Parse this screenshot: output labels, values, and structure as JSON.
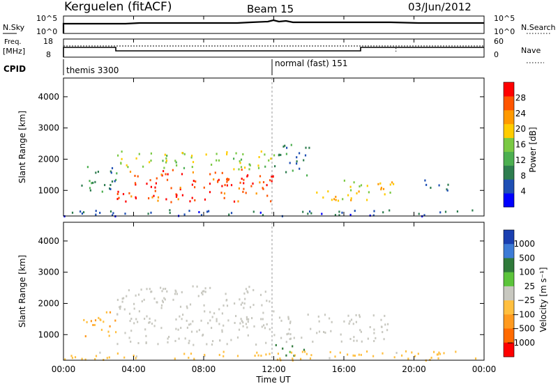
{
  "header": {
    "site": "Kerguelen (fitACF)",
    "beam": "Beam 15",
    "date": "03/Jun/2012"
  },
  "nsky_panel": {
    "left_label": "N.Sky",
    "right_label": "N.Search",
    "left_ticks": [
      "10^5",
      "10^0"
    ],
    "right_ticks": [
      "10^5",
      "10^0"
    ]
  },
  "freq_panel": {
    "left_label_1": "Freq.",
    "left_label_2": "[MHz]",
    "right_label": "Nave",
    "left_ticks": [
      "18",
      "8"
    ],
    "right_ticks": [
      "60",
      "0"
    ]
  },
  "cpid": {
    "label": "CPID",
    "modes": [
      {
        "name": "themis",
        "id": "3300"
      },
      {
        "name": "normal (fast)",
        "id": "151"
      }
    ]
  },
  "time_axis": {
    "label": "Time UT",
    "ticks": [
      "00:00",
      "04:00",
      "08:00",
      "12:00",
      "16:00",
      "20:00",
      "00:00"
    ]
  },
  "power_panel": {
    "ylabel": "Slant Range [km]",
    "yticks": [
      "1000",
      "2000",
      "3000",
      "4000"
    ],
    "colorbar_label": "Power [dB]",
    "colorbar_ticks": [
      "4",
      "8",
      "12",
      "16",
      "20",
      "24",
      "28"
    ]
  },
  "velocity_panel": {
    "ylabel": "Slant Range [km]",
    "yticks": [
      "1000",
      "2000",
      "3000",
      "4000"
    ],
    "colorbar_label": "Velocity [m s⁻¹]",
    "colorbar_ticks": [
      "1000",
      "500",
      "100",
      "25",
      "−25",
      "−100",
      "−500",
      "−1000"
    ]
  },
  "colors": {
    "power_scale": [
      "#0000ff",
      "#1f4fb4",
      "#2e7d4f",
      "#4caf50",
      "#7ac943",
      "#ffcc00",
      "#ff9900",
      "#ff5500",
      "#ff0000"
    ],
    "velocity_scale": [
      "#1a3fb0",
      "#3d7bd6",
      "#2f7a3a",
      "#5cc43b",
      "#c8c8c0",
      "#ffbf3f",
      "#ff9a1f",
      "#ff6a00",
      "#ff0000"
    ],
    "ground_scatter": "#c8c8c0"
  },
  "chart_data": [
    {
      "type": "line",
      "title": "N.Sky / N.Search",
      "x": [
        0,
        12,
        24
      ],
      "xlim": [
        0,
        24
      ],
      "series": [
        {
          "name": "N.Sky",
          "values": [
            1000,
            1600,
            1000
          ]
        }
      ],
      "yscale": "log",
      "ylim": [
        1,
        100000
      ]
    },
    {
      "type": "line",
      "title": "Freq / Nave",
      "x": [
        0,
        3,
        3,
        17,
        17,
        24
      ],
      "xlim": [
        0,
        24
      ],
      "series": [
        {
          "name": "Freq. [MHz]",
          "values": [
            12.5,
            12.5,
            9.6,
            9.6,
            12.5,
            12.5
          ]
        }
      ],
      "ylim": [
        8,
        18
      ]
    },
    {
      "type": "heatmap",
      "title": "Power [dB]",
      "xlim": [
        0,
        24
      ],
      "ylim": [
        180,
        4600
      ],
      "zlim": [
        0,
        30
      ],
      "regions": [
        {
          "t0": 1.0,
          "t1": 3.0,
          "r0": 900,
          "r1": 1900,
          "power": 8
        },
        {
          "t0": 3.0,
          "t1": 12.0,
          "r0": 650,
          "r1": 1700,
          "power": 27
        },
        {
          "t0": 3.0,
          "t1": 12.0,
          "r0": 1700,
          "r1": 2300,
          "power": 16
        },
        {
          "t0": 12.0,
          "t1": 14.0,
          "r0": 1500,
          "r1": 2500,
          "power": 6
        },
        {
          "t0": 14.3,
          "t1": 15.6,
          "r0": 700,
          "r1": 1200,
          "power": 20
        },
        {
          "t0": 15.6,
          "t1": 19.0,
          "r0": 700,
          "r1": 1400,
          "power": 18
        },
        {
          "t0": 20.5,
          "t1": 22.0,
          "r0": 1000,
          "r1": 1400,
          "power": 6
        },
        {
          "t0": 0.0,
          "t1": 24.0,
          "r0": 200,
          "r1": 400,
          "power": 5
        }
      ]
    },
    {
      "type": "heatmap",
      "title": "Velocity [m s⁻¹]",
      "xlim": [
        0,
        24
      ],
      "ylim": [
        180,
        4600
      ],
      "zlim": [
        -1000,
        1000
      ],
      "regions": [
        {
          "t0": 1.0,
          "t1": 3.0,
          "r0": 950,
          "r1": 1800,
          "velocity": -100
        },
        {
          "t0": 3.0,
          "t1": 12.0,
          "r0": 700,
          "r1": 2600,
          "velocity": 0,
          "ground_scatter": true
        },
        {
          "t0": 12.0,
          "t1": 18.5,
          "r0": 800,
          "r1": 1700,
          "velocity": 0,
          "ground_scatter": true
        },
        {
          "t0": 12.0,
          "t1": 13.8,
          "r0": 350,
          "r1": 700,
          "velocity": 100
        },
        {
          "t0": 0.0,
          "t1": 24.0,
          "r0": 200,
          "r1": 500,
          "velocity": -50
        }
      ]
    }
  ]
}
